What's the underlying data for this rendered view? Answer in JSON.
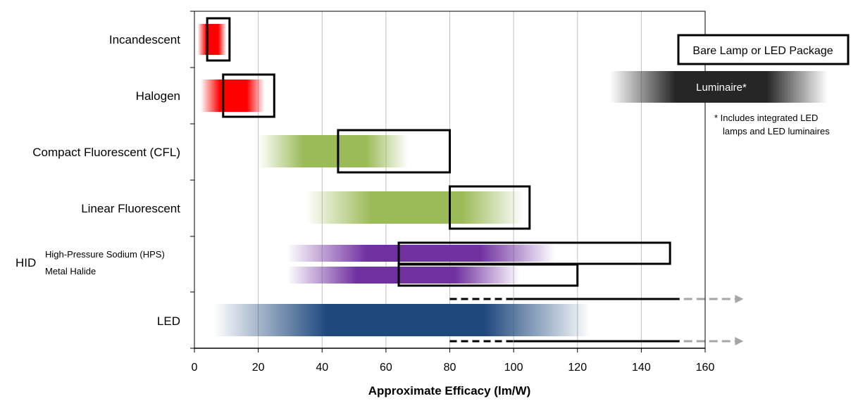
{
  "chart_data": {
    "type": "range-bar",
    "title": "",
    "xlabel": "Approximate Efficacy (lm/W)",
    "ylabel": "",
    "xlim": [
      0,
      160
    ],
    "xticks": [
      0,
      20,
      40,
      60,
      80,
      100,
      120,
      140,
      160
    ],
    "grid": "vertical",
    "categories": [
      {
        "key": "incandescent",
        "label": "Incandescent"
      },
      {
        "key": "halogen",
        "label": "Halogen"
      },
      {
        "key": "cfl",
        "label": "Compact Fluorescent (CFL)"
      },
      {
        "key": "linear",
        "label": "Linear Fluorescent"
      },
      {
        "key": "hid",
        "label": "HID",
        "sub_labels": [
          "High-Pressure Sodium (HPS)",
          "Metal Halide"
        ]
      },
      {
        "key": "led",
        "label": "LED"
      }
    ],
    "series": [
      {
        "name": "Bare Lamp or LED Package",
        "style": "outlined-box",
        "ranges": [
          {
            "category": "incandescent",
            "min": 4,
            "max": 11
          },
          {
            "category": "halogen",
            "min": 9,
            "max": 25
          },
          {
            "category": "cfl",
            "min": 45,
            "max": 80
          },
          {
            "category": "linear",
            "min": 80,
            "max": 105
          },
          {
            "category": "hid",
            "sub": "High-Pressure Sodium (HPS)",
            "min": 64,
            "max": 149
          },
          {
            "category": "hid",
            "sub": "Metal Halide",
            "min": 64,
            "max": 120
          },
          {
            "category": "led",
            "min": 80,
            "max": 152,
            "dashed_until": 100,
            "arrow_to": 172
          }
        ]
      },
      {
        "name": "Luminaire*",
        "style": "gradient-fill",
        "ranges": [
          {
            "category": "incandescent",
            "min": 1,
            "max": 10,
            "color": "#ff0000"
          },
          {
            "category": "halogen",
            "min": 2,
            "max": 22,
            "color": "#ff0000"
          },
          {
            "category": "cfl",
            "min": 20,
            "max": 67,
            "color": "#9bbb59"
          },
          {
            "category": "linear",
            "min": 35,
            "max": 103,
            "color": "#9bbb59"
          },
          {
            "category": "hid",
            "sub": "High-Pressure Sodium (HPS)",
            "min": 29,
            "max": 113,
            "color": "#7030a0"
          },
          {
            "category": "hid",
            "sub": "Metal Halide",
            "min": 29,
            "max": 102,
            "color": "#7030a0"
          },
          {
            "category": "led",
            "min": 6,
            "max": 124,
            "color": "#1f497d"
          }
        ]
      }
    ],
    "legend": {
      "position": "top-right",
      "bare_label": "Bare Lamp or LED Package",
      "luminaire_label": "Luminaire*",
      "luminaire_color": "#262626",
      "note_line1": "* Includes integrated LED",
      "note_line2": "lamps and LED luminaires"
    },
    "colors": {
      "grid": "#bfbfbf",
      "outline": "#000000",
      "arrow": "#a6a6a6"
    }
  }
}
